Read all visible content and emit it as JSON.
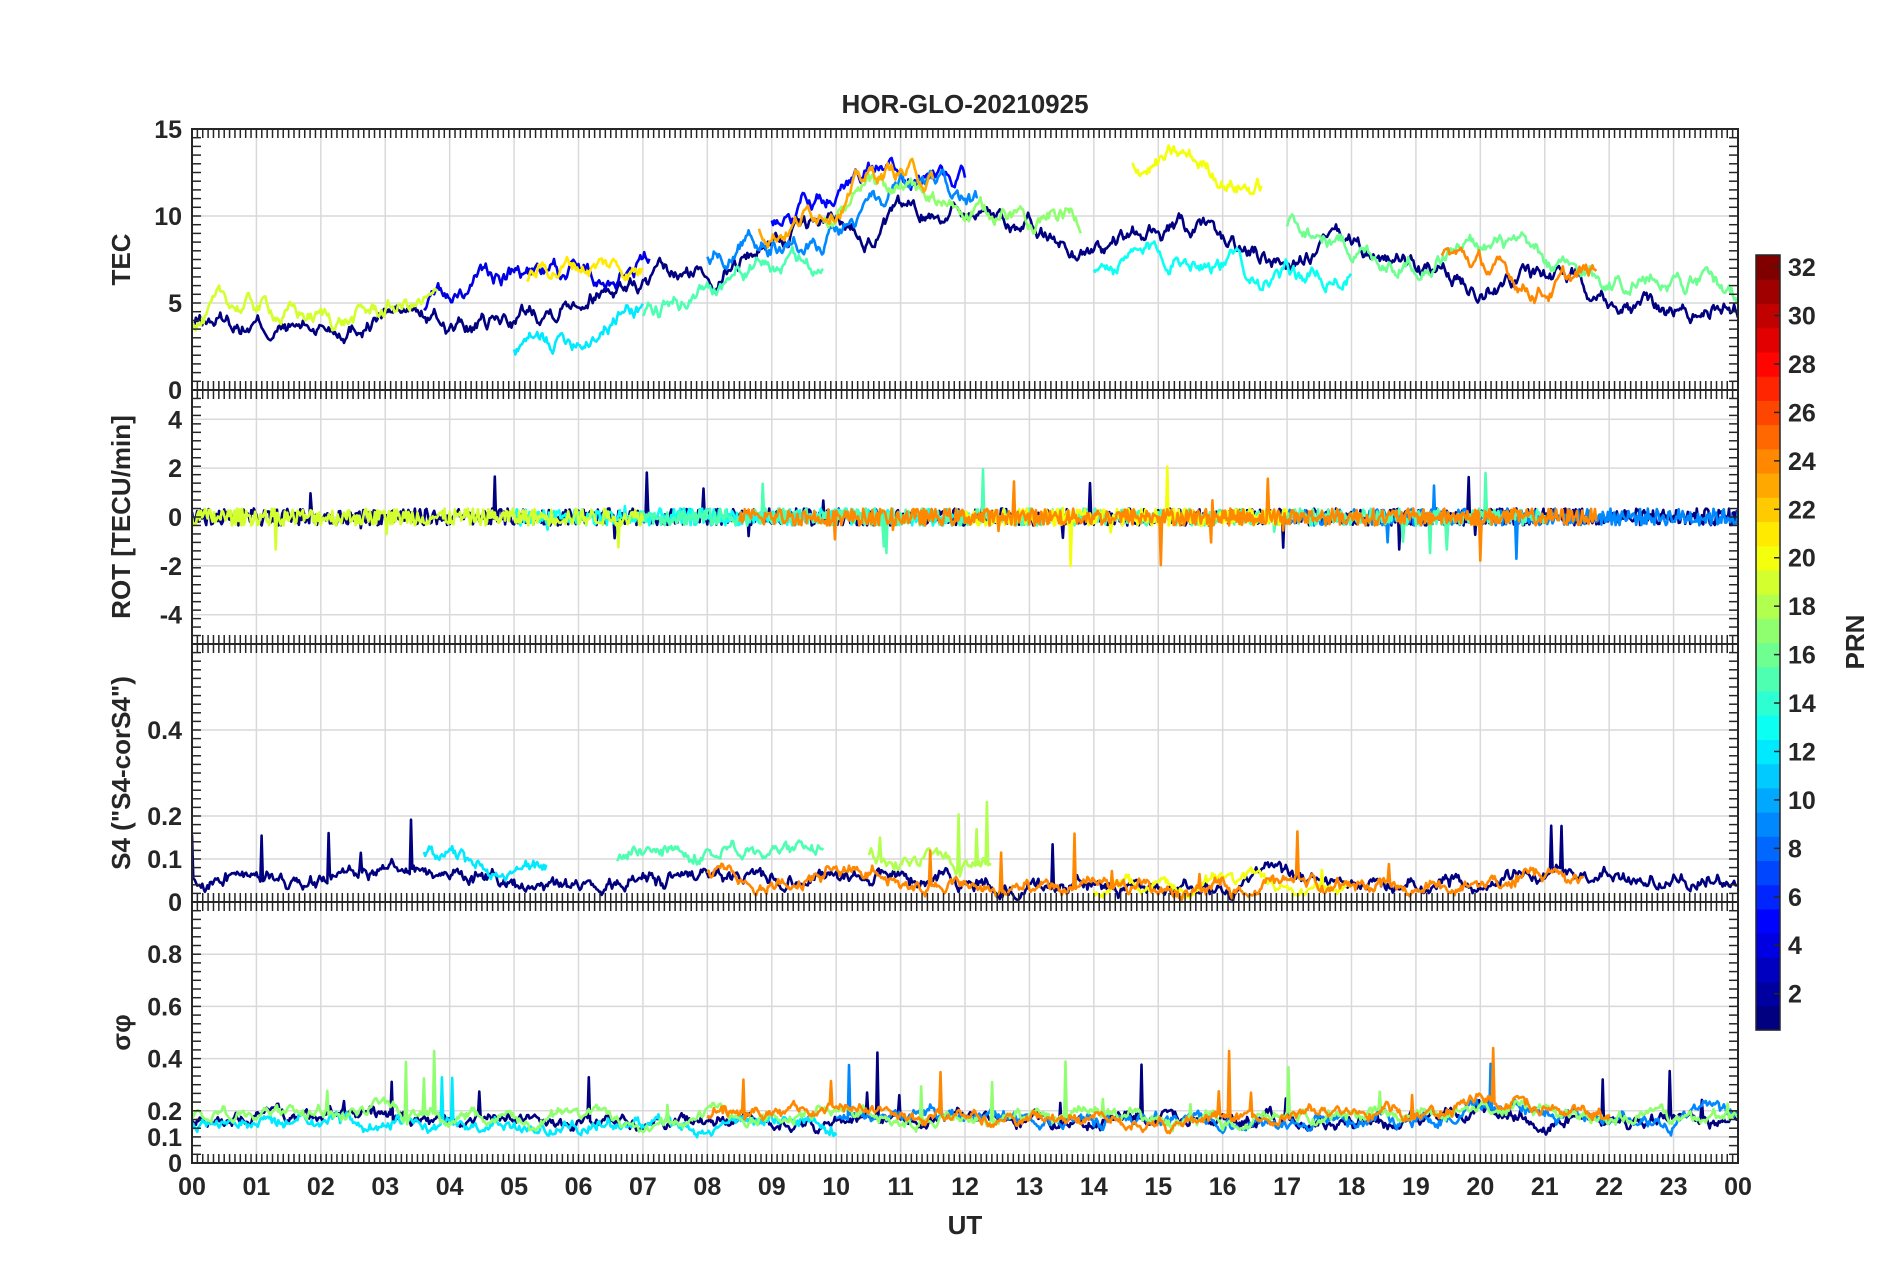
{
  "chart_data": {
    "type": "line",
    "title": "HOR-GLO-20210925",
    "xlabel": "UT",
    "x_tick_labels": [
      "00",
      "01",
      "02",
      "03",
      "04",
      "05",
      "06",
      "07",
      "08",
      "09",
      "10",
      "11",
      "12",
      "13",
      "14",
      "15",
      "16",
      "17",
      "18",
      "19",
      "20",
      "21",
      "22",
      "23",
      "00"
    ],
    "xlim": [
      0,
      24
    ],
    "panels": [
      {
        "id": "tec",
        "ylabel": "TEC",
        "ylim": [
          0,
          15
        ],
        "y_ticks": [
          0,
          5,
          10,
          15
        ],
        "y_tick_labels": [
          "0",
          "5",
          "10",
          "15"
        ],
        "baseline": [
          3.2,
          3.8,
          4.2,
          4.0,
          3.6,
          4.6,
          5.4,
          6.2,
          7.2,
          8.2,
          9.4,
          10.3,
          10.2,
          9.4,
          8.6,
          8.4,
          8.3,
          8.0,
          7.6,
          7.0,
          6.8,
          6.2,
          5.8,
          5.0,
          4.4
        ],
        "noise": 0.35,
        "series": [
          {
            "prn": 1,
            "start": 0.0,
            "end": 24.0,
            "offset": 0.0
          },
          {
            "prn": 4,
            "start": 3.6,
            "end": 7.1,
            "offset": 1.6
          },
          {
            "prn": 5,
            "start": 9.0,
            "end": 12.0,
            "offset": 2.2
          },
          {
            "prn": 9,
            "start": 8.0,
            "end": 12.2,
            "offset": 0.4
          },
          {
            "prn": 12,
            "start": 5.0,
            "end": 7.0,
            "offset": -1.8
          },
          {
            "prn": 13,
            "start": 14.0,
            "end": 18.0,
            "offset": -1.0
          },
          {
            "prn": 15,
            "start": 7.0,
            "end": 9.8,
            "offset": -1.5
          },
          {
            "prn": 16,
            "start": 17.0,
            "end": 24.0,
            "offset": 1.0
          },
          {
            "prn": 17,
            "start": 9.8,
            "end": 13.8,
            "offset": 0.6
          },
          {
            "prn": 19,
            "start": 0.0,
            "end": 3.8,
            "offset": 0.5
          },
          {
            "prn": 20,
            "start": 14.6,
            "end": 16.6,
            "offset": 4.2
          },
          {
            "prn": 21,
            "start": 5.2,
            "end": 7.0,
            "offset": 1.4
          },
          {
            "prn": 23,
            "start": 8.8,
            "end": 11.5,
            "offset": 1.8
          },
          {
            "prn": 24,
            "start": 19.4,
            "end": 21.8,
            "offset": 0.3
          }
        ]
      },
      {
        "id": "rot",
        "ylabel": "ROT [TECU/min]",
        "ylim": [
          -5.2,
          5.2
        ],
        "y_ticks": [
          -4,
          -2,
          0,
          2,
          4
        ],
        "y_tick_labels": [
          "-4",
          "-2",
          "0",
          "2",
          "4"
        ],
        "baseline": [
          0,
          0,
          0,
          0,
          0,
          0,
          0,
          0,
          0,
          0,
          0,
          0,
          0,
          0,
          0,
          0,
          0,
          0,
          0,
          0,
          0,
          0,
          0,
          0,
          0
        ],
        "noise": 0.35,
        "series": [
          {
            "prn": 1,
            "start": 0.0,
            "end": 24.0,
            "offset": 0.0
          },
          {
            "prn": 9,
            "start": 17.0,
            "end": 24.0,
            "offset": 0.0
          },
          {
            "prn": 13,
            "start": 5.0,
            "end": 12.0,
            "offset": 0.0
          },
          {
            "prn": 15,
            "start": 7.0,
            "end": 21.0,
            "offset": 0.0
          },
          {
            "prn": 19,
            "start": 0.0,
            "end": 7.0,
            "offset": 0.0
          },
          {
            "prn": 20,
            "start": 12.0,
            "end": 17.0,
            "offset": 0.0
          },
          {
            "prn": 24,
            "start": 8.5,
            "end": 21.8,
            "offset": 0.0
          }
        ]
      },
      {
        "id": "s4",
        "ylabel": "S4 (\"S4-corS4\")",
        "ylim": [
          0,
          0.6
        ],
        "y_ticks": [
          0,
          0.1,
          0.2,
          0.4
        ],
        "y_tick_labels": [
          "0",
          "0.1",
          "0.2",
          "0.4"
        ],
        "baseline": [
          0.05,
          0.06,
          0.04,
          0.08,
          0.06,
          0.03,
          0.03,
          0.05,
          0.06,
          0.05,
          0.07,
          0.06,
          0.05,
          0.03,
          0.03,
          0.03,
          0.04,
          0.05,
          0.04,
          0.03,
          0.05,
          0.06,
          0.05,
          0.05,
          0.04
        ],
        "noise": 0.02,
        "series": [
          {
            "prn": 1,
            "start": 0.0,
            "end": 24.0,
            "offset": 0.0
          },
          {
            "prn": 12,
            "start": 3.6,
            "end": 5.5,
            "offset": 0.04
          },
          {
            "prn": 15,
            "start": 6.6,
            "end": 9.8,
            "offset": 0.06
          },
          {
            "prn": 18,
            "start": 10.5,
            "end": 12.4,
            "offset": 0.03
          },
          {
            "prn": 20,
            "start": 14.0,
            "end": 18.0,
            "offset": 0.0
          },
          {
            "prn": 24,
            "start": 8.0,
            "end": 21.6,
            "offset": -0.01
          }
        ]
      },
      {
        "id": "sigma",
        "ylabel": "σφ",
        "ylim": [
          0,
          1.0
        ],
        "y_ticks": [
          0,
          0.1,
          0.2,
          0.4,
          0.6,
          0.8
        ],
        "y_tick_labels": [
          "0",
          "0.1",
          "0.2",
          "0.4",
          "0.6",
          "0.8"
        ],
        "baseline": [
          0.16,
          0.17,
          0.18,
          0.18,
          0.15,
          0.15,
          0.16,
          0.16,
          0.16,
          0.17,
          0.17,
          0.16,
          0.16,
          0.15,
          0.15,
          0.15,
          0.15,
          0.15,
          0.16,
          0.16,
          0.2,
          0.17,
          0.16,
          0.16,
          0.16
        ],
        "noise": 0.03,
        "series": [
          {
            "prn": 1,
            "start": 0.0,
            "end": 24.0,
            "offset": 0.0
          },
          {
            "prn": 9,
            "start": 10.0,
            "end": 24.0,
            "offset": 0.01
          },
          {
            "prn": 12,
            "start": 0.0,
            "end": 10.0,
            "offset": -0.02
          },
          {
            "prn": 17,
            "start": 0.0,
            "end": 24.0,
            "offset": 0.01
          },
          {
            "prn": 24,
            "start": 8.0,
            "end": 22.0,
            "offset": 0.02
          }
        ]
      }
    ],
    "colorbar": {
      "label": "PRN",
      "range": [
        1,
        32
      ],
      "tick_labels": [
        "2",
        "4",
        "6",
        "8",
        "10",
        "12",
        "14",
        "16",
        "18",
        "20",
        "22",
        "24",
        "26",
        "28",
        "30",
        "32"
      ]
    }
  }
}
